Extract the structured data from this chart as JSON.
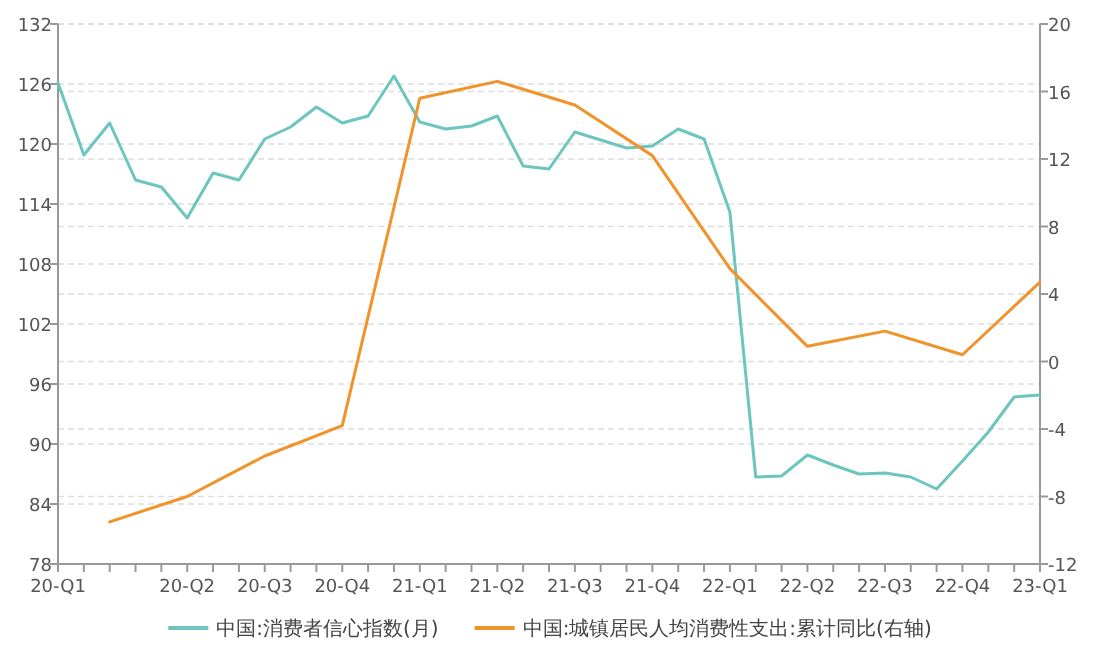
{
  "chart_data": {
    "type": "line",
    "categories": [
      "20-Q1",
      null,
      null,
      null,
      null,
      "20-Q2",
      null,
      null,
      "20-Q3",
      null,
      null,
      "20-Q4",
      null,
      null,
      "21-Q1",
      null,
      null,
      "21-Q2",
      null,
      null,
      "21-Q3",
      null,
      null,
      "21-Q4",
      null,
      null,
      "22-Q1",
      null,
      null,
      "22-Q2",
      null,
      null,
      "22-Q3",
      null,
      null,
      "22-Q4",
      null,
      null,
      "23-Q1"
    ],
    "series": [
      {
        "name": "中国:消费者信心指数(月)",
        "color": "#6cc5bf",
        "values": [
          126.1,
          118.9,
          122.1,
          116.4,
          115.7,
          112.6,
          117.1,
          116.4,
          120.5,
          121.7,
          123.7,
          122.1,
          122.8,
          126.8,
          122.2,
          121.5,
          121.8,
          122.8,
          117.8,
          117.5,
          121.2,
          120.4,
          119.6,
          119.8,
          121.5,
          120.5,
          113.2,
          86.7,
          86.8,
          88.9,
          87.9,
          87.0,
          87.1,
          86.7,
          85.5,
          88.3,
          91.2,
          94.7,
          94.9
        ]
      },
      {
        "name": "中国:城镇居民人均消费性支出:累计同比(右轴)",
        "color": "#f0932b",
        "axis": "y2",
        "values": [
          null,
          null,
          -9.5,
          null,
          null,
          -8.0,
          null,
          null,
          -5.6,
          null,
          null,
          -3.8,
          null,
          null,
          15.6,
          null,
          null,
          16.6,
          null,
          null,
          15.2,
          null,
          null,
          12.2,
          null,
          null,
          5.5,
          null,
          null,
          0.9,
          null,
          null,
          1.8,
          null,
          null,
          0.4,
          null,
          null,
          4.7
        ]
      }
    ],
    "ylim": [
      78,
      132
    ],
    "yticks": [
      78,
      84,
      90,
      96,
      102,
      108,
      114,
      120,
      126,
      132
    ],
    "y2lim": [
      -12,
      20
    ],
    "y2ticks": [
      -12,
      -8,
      -4,
      0,
      4,
      8,
      12,
      16,
      20
    ],
    "grid": "y",
    "legend": "bottom"
  }
}
